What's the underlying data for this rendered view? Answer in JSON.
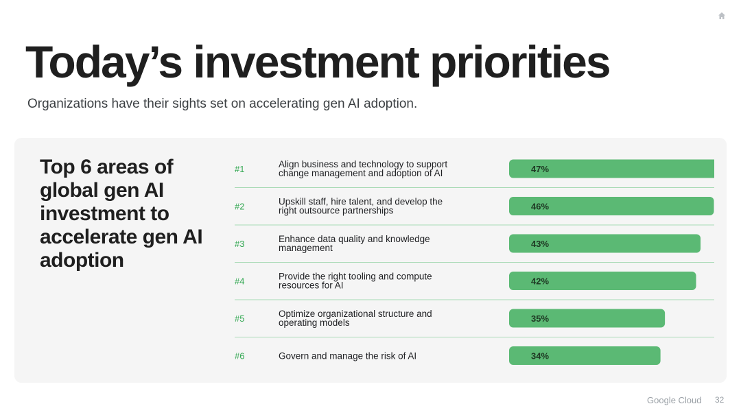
{
  "slide": {
    "title": "Today’s investment priorities",
    "subtitle": "Organizations have their sights set on accelerating gen AI adoption.",
    "panel_heading": "Top 6 areas of global gen AI investment to accelerate gen AI adoption",
    "footer_logo": "Google Cloud",
    "page_number": "32",
    "home_icon": "home-icon"
  },
  "chart_data": {
    "type": "bar",
    "orientation": "horizontal",
    "ranks": [
      "#1",
      "#2",
      "#3",
      "#4",
      "#5",
      "#6"
    ],
    "categories": [
      [
        "Align business and technology to support",
        "change management and adoption of AI"
      ],
      [
        "Upskill staff, hire talent, and develop the",
        "right outsource partnerships"
      ],
      [
        "Enhance data quality and knowledge",
        "management"
      ],
      [
        "Provide the right tooling and compute",
        "resources for AI"
      ],
      [
        "Optimize organizational structure and",
        "operating models"
      ],
      [
        "Govern and manage the risk of AI"
      ]
    ],
    "values": [
      47,
      46,
      43,
      42,
      35,
      34
    ],
    "value_labels": [
      "47%",
      "46%",
      "43%",
      "42%",
      "35%",
      "34%"
    ],
    "colors": {
      "bar": "#5bb974",
      "rank": "#34a853",
      "divider": "#a8dab5"
    },
    "grid": false,
    "legend": "none"
  }
}
